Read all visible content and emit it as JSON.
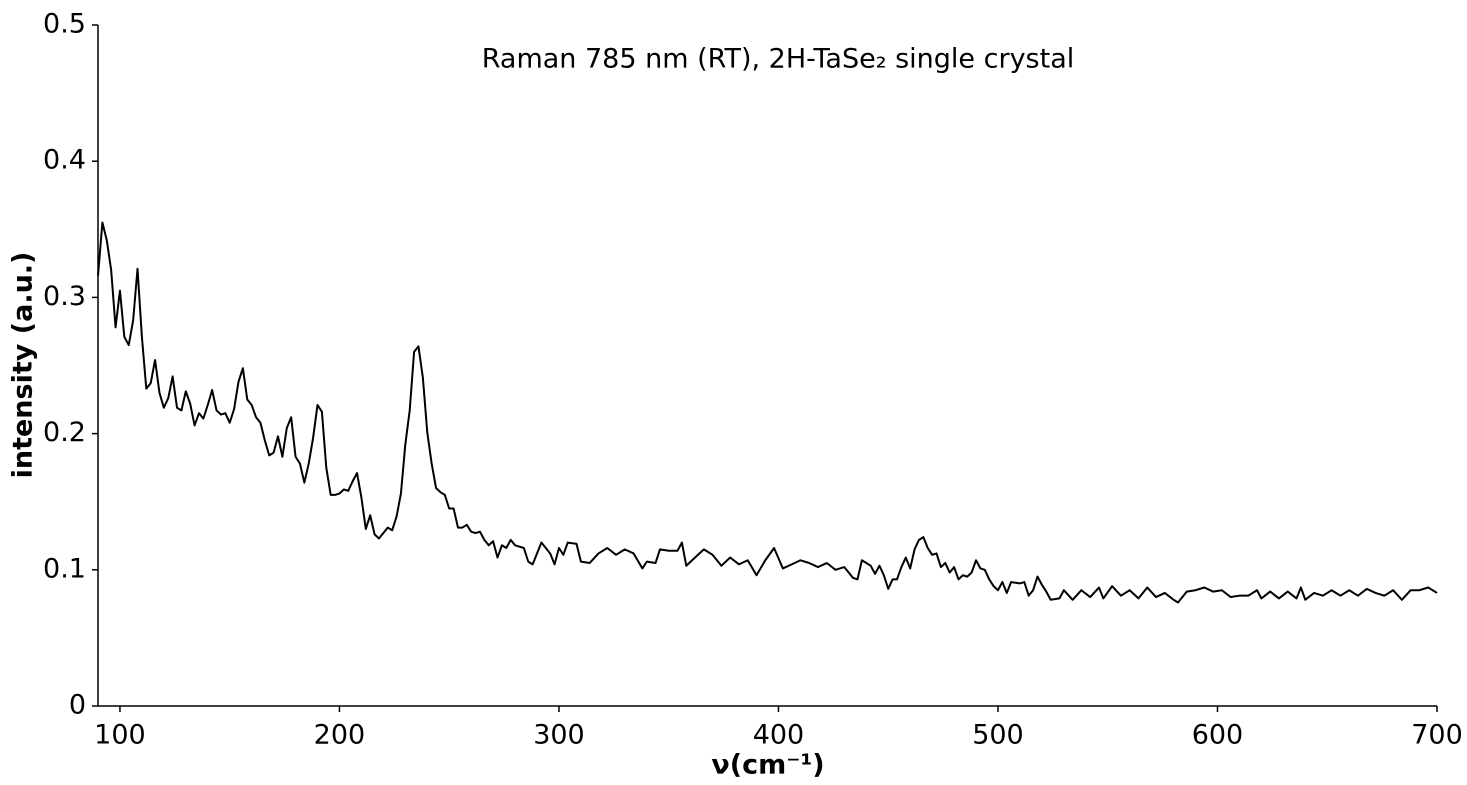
{
  "chart_data": {
    "type": "line",
    "title": "Raman 785 nm (RT), 2H-TaSe₂ single crystal",
    "xlabel": "ν(cm⁻¹)",
    "ylabel": "intensity (a.u.)",
    "color": "#000000",
    "xlim": [
      90,
      700
    ],
    "ylim": [
      0,
      0.5
    ],
    "xticks": [
      100,
      200,
      300,
      400,
      500,
      600,
      700
    ],
    "yticks": [
      0,
      0.1,
      0.2,
      0.3,
      0.4,
      0.5
    ],
    "x": [
      90,
      92,
      94,
      96,
      98,
      100,
      102,
      104,
      106,
      108,
      110,
      112,
      114,
      116,
      118,
      120,
      122,
      124,
      126,
      128,
      130,
      132,
      134,
      136,
      138,
      140,
      142,
      144,
      146,
      148,
      150,
      152,
      154,
      156,
      158,
      160,
      162,
      164,
      166,
      168,
      170,
      172,
      174,
      176,
      178,
      180,
      182,
      184,
      186,
      188,
      190,
      192,
      194,
      196,
      198,
      200,
      202,
      204,
      206,
      208,
      210,
      212,
      214,
      216,
      218,
      220,
      222,
      224,
      226,
      228,
      230,
      232,
      234,
      236,
      238,
      240,
      242,
      244,
      246,
      248,
      250,
      252,
      254,
      256,
      258,
      260,
      262,
      264,
      266,
      268,
      270,
      272,
      274,
      276,
      278,
      280,
      284,
      286,
      288,
      292,
      296,
      298,
      300,
      302,
      304,
      308,
      310,
      314,
      318,
      322,
      326,
      330,
      334,
      338,
      340,
      344,
      346,
      350,
      354,
      356,
      358,
      362,
      366,
      370,
      374,
      378,
      382,
      386,
      390,
      394,
      398,
      402,
      406,
      410,
      414,
      418,
      422,
      426,
      430,
      434,
      436,
      438,
      442,
      444,
      446,
      448,
      450,
      452,
      454,
      456,
      458,
      460,
      462,
      464,
      466,
      468,
      470,
      472,
      474,
      476,
      478,
      480,
      482,
      484,
      486,
      488,
      490,
      492,
      494,
      496,
      498,
      500,
      502,
      504,
      506,
      510,
      512,
      514,
      516,
      518,
      520,
      522,
      524,
      528,
      530,
      534,
      538,
      542,
      546,
      548,
      552,
      556,
      560,
      564,
      568,
      572,
      576,
      580,
      582,
      586,
      590,
      594,
      598,
      602,
      606,
      610,
      614,
      618,
      620,
      624,
      628,
      632,
      636,
      638,
      640,
      644,
      648,
      652,
      656,
      660,
      664,
      668,
      672,
      676,
      680,
      684,
      688,
      692,
      696,
      700
    ],
    "values": [
      0.316,
      0.355,
      0.342,
      0.32,
      0.278,
      0.305,
      0.271,
      0.265,
      0.283,
      0.321,
      0.271,
      0.233,
      0.237,
      0.254,
      0.23,
      0.219,
      0.226,
      0.242,
      0.219,
      0.217,
      0.231,
      0.222,
      0.206,
      0.215,
      0.211,
      0.221,
      0.232,
      0.217,
      0.214,
      0.215,
      0.208,
      0.218,
      0.238,
      0.248,
      0.225,
      0.221,
      0.212,
      0.208,
      0.195,
      0.184,
      0.186,
      0.198,
      0.183,
      0.204,
      0.212,
      0.183,
      0.178,
      0.164,
      0.178,
      0.197,
      0.221,
      0.216,
      0.175,
      0.155,
      0.155,
      0.156,
      0.159,
      0.158,
      0.165,
      0.171,
      0.153,
      0.13,
      0.14,
      0.126,
      0.123,
      0.127,
      0.131,
      0.129,
      0.139,
      0.156,
      0.192,
      0.217,
      0.26,
      0.264,
      0.241,
      0.201,
      0.178,
      0.16,
      0.157,
      0.155,
      0.145,
      0.145,
      0.131,
      0.131,
      0.133,
      0.128,
      0.127,
      0.128,
      0.122,
      0.118,
      0.121,
      0.109,
      0.118,
      0.116,
      0.122,
      0.118,
      0.116,
      0.106,
      0.104,
      0.12,
      0.112,
      0.104,
      0.116,
      0.111,
      0.12,
      0.119,
      0.106,
      0.105,
      0.112,
      0.116,
      0.111,
      0.115,
      0.112,
      0.101,
      0.106,
      0.105,
      0.115,
      0.114,
      0.114,
      0.12,
      0.103,
      0.109,
      0.115,
      0.111,
      0.103,
      0.109,
      0.104,
      0.107,
      0.096,
      0.107,
      0.116,
      0.101,
      0.104,
      0.107,
      0.105,
      0.102,
      0.105,
      0.1,
      0.102,
      0.094,
      0.093,
      0.107,
      0.103,
      0.097,
      0.103,
      0.096,
      0.086,
      0.093,
      0.093,
      0.102,
      0.109,
      0.101,
      0.115,
      0.122,
      0.124,
      0.116,
      0.111,
      0.112,
      0.102,
      0.105,
      0.098,
      0.102,
      0.093,
      0.096,
      0.095,
      0.098,
      0.107,
      0.101,
      0.1,
      0.093,
      0.088,
      0.085,
      0.091,
      0.083,
      0.091,
      0.09,
      0.091,
      0.081,
      0.085,
      0.095,
      0.089,
      0.084,
      0.078,
      0.079,
      0.085,
      0.078,
      0.085,
      0.08,
      0.087,
      0.079,
      0.088,
      0.081,
      0.085,
      0.079,
      0.087,
      0.08,
      0.083,
      0.078,
      0.076,
      0.084,
      0.085,
      0.087,
      0.084,
      0.085,
      0.08,
      0.081,
      0.081,
      0.085,
      0.079,
      0.084,
      0.079,
      0.084,
      0.079,
      0.087,
      0.078,
      0.083,
      0.081,
      0.085,
      0.081,
      0.085,
      0.081,
      0.086,
      0.083,
      0.081,
      0.085,
      0.078,
      0.085,
      0.085,
      0.087,
      0.083
    ]
  }
}
